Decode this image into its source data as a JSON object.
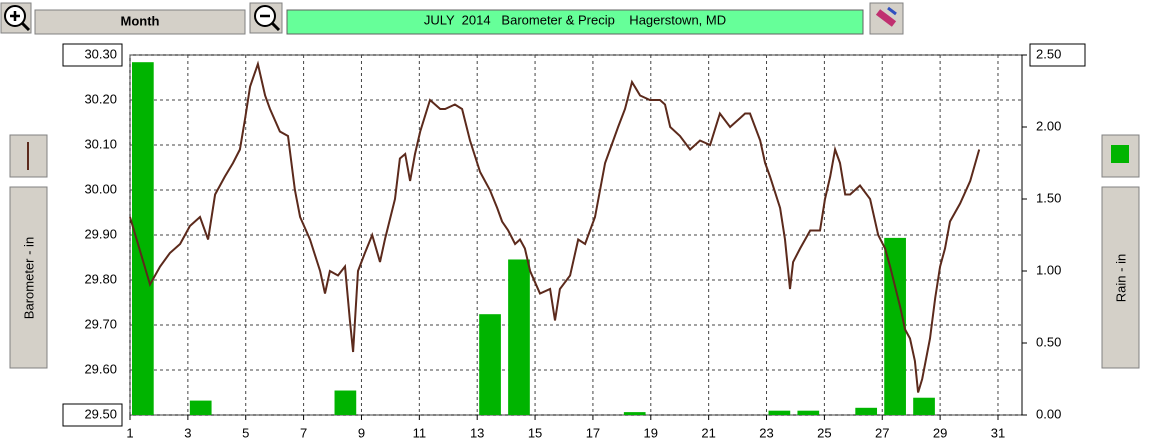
{
  "ui": {
    "period_button": "Month"
  },
  "chart_data": {
    "type": "combo",
    "title": "JULY  2014   Barometer & Precip    Hagerstown, MD",
    "y_label": "Barometer - in",
    "y2_label": "Rain - in",
    "xlim": [
      1,
      31.83
    ],
    "xticks": [
      1,
      3,
      5,
      7,
      9,
      11,
      13,
      15,
      17,
      19,
      21,
      23,
      25,
      27,
      29,
      31
    ],
    "ylim": [
      29.5,
      30.3
    ],
    "yticks": [
      {
        "value": 29.5,
        "label": "29.50"
      },
      {
        "value": 29.6,
        "label": "29.60"
      },
      {
        "value": 29.7,
        "label": "29.70"
      },
      {
        "value": 29.8,
        "label": "29.80"
      },
      {
        "value": 29.9,
        "label": "29.90"
      },
      {
        "value": 30.0,
        "label": "30.00"
      },
      {
        "value": 30.1,
        "label": "30.10"
      },
      {
        "value": 30.2,
        "label": "30.20"
      },
      {
        "value": 30.3,
        "label": "30.30"
      }
    ],
    "y2lim": [
      0,
      2.5
    ],
    "y2ticks": [
      {
        "value": 0,
        "label": "0.00"
      },
      {
        "value": 0.5,
        "label": "0.50"
      },
      {
        "value": 1.0,
        "label": "1.00"
      },
      {
        "value": 1.5,
        "label": "1.50"
      },
      {
        "value": 2.0,
        "label": "2.00"
      },
      {
        "value": 2.5,
        "label": "2.50"
      }
    ],
    "grid": true,
    "series": [
      {
        "type": "line",
        "color": "#5c2a1c",
        "x": [
          1.0,
          1.69,
          2.04,
          2.38,
          2.73,
          3.07,
          3.42,
          3.7,
          3.94,
          4.28,
          4.56,
          4.8,
          4.98,
          5.15,
          5.42,
          5.67,
          5.84,
          6.18,
          6.46,
          6.7,
          6.88,
          7.22,
          7.57,
          7.74,
          7.91,
          8.19,
          8.43,
          8.6,
          8.71,
          8.88,
          9.12,
          9.37,
          9.64,
          9.81,
          10.16,
          10.33,
          10.51,
          10.68,
          10.85,
          11.03,
          11.37,
          11.72,
          11.89,
          12.23,
          12.48,
          12.75,
          13.1,
          13.44,
          13.69,
          13.86,
          14.07,
          14.31,
          14.48,
          14.65,
          14.83,
          15.17,
          15.52,
          15.69,
          15.86,
          16.21,
          16.49,
          16.73,
          17.07,
          17.42,
          17.59,
          17.87,
          18.11,
          18.35,
          18.63,
          18.97,
          19.32,
          19.49,
          19.67,
          20.01,
          20.36,
          20.7,
          21.05,
          21.39,
          21.74,
          22.09,
          22.26,
          22.43,
          22.78,
          22.95,
          23.12,
          23.47,
          23.64,
          23.81,
          23.92,
          24.16,
          24.51,
          24.85,
          25.02,
          25.2,
          25.37,
          25.54,
          25.72,
          25.89,
          26.23,
          26.58,
          26.86,
          27.1,
          27.27,
          27.62,
          27.79,
          27.96,
          28.13,
          28.24,
          28.38,
          28.65,
          28.83,
          29.0,
          29.17,
          29.34,
          29.69,
          30.04,
          30.35
        ],
        "values": [
          29.94,
          29.79,
          29.83,
          29.86,
          29.88,
          29.92,
          29.94,
          29.89,
          29.99,
          30.03,
          30.06,
          30.09,
          30.16,
          30.23,
          30.28,
          30.21,
          30.18,
          30.13,
          30.12,
          30.0,
          29.94,
          29.89,
          29.82,
          29.77,
          29.82,
          29.81,
          29.83,
          29.71,
          29.64,
          29.82,
          29.86,
          29.9,
          29.84,
          29.89,
          29.98,
          30.07,
          30.08,
          30.02,
          30.08,
          30.13,
          30.2,
          30.18,
          30.18,
          30.19,
          30.18,
          30.11,
          30.04,
          30.0,
          29.96,
          29.93,
          29.91,
          29.88,
          29.89,
          29.87,
          29.82,
          29.77,
          29.78,
          29.71,
          29.78,
          29.81,
          29.89,
          29.88,
          29.94,
          30.06,
          30.09,
          30.14,
          30.18,
          30.24,
          30.21,
          30.2,
          30.2,
          30.19,
          30.14,
          30.12,
          30.09,
          30.11,
          30.1,
          30.17,
          30.14,
          30.16,
          30.17,
          30.17,
          30.11,
          30.06,
          30.03,
          29.96,
          29.89,
          29.78,
          29.84,
          29.87,
          29.91,
          29.91,
          29.98,
          30.03,
          30.09,
          30.06,
          29.99,
          29.99,
          30.01,
          29.98,
          29.9,
          29.87,
          29.83,
          29.74,
          29.69,
          29.67,
          29.62,
          29.55,
          29.58,
          29.67,
          29.76,
          29.83,
          29.87,
          29.93,
          29.97,
          30.02,
          30.09
        ]
      },
      {
        "type": "bar",
        "axis": "y2",
        "color": "#00b400",
        "x": [
          1,
          2,
          3,
          4,
          5,
          6,
          7,
          8,
          9,
          10,
          11,
          12,
          13,
          14,
          15,
          16,
          17,
          18,
          19,
          20,
          21,
          22,
          23,
          24,
          25,
          26,
          27,
          28,
          29,
          30,
          31
        ],
        "values": [
          2.45,
          0,
          0.1,
          0,
          0,
          0,
          0,
          0.17,
          0,
          0,
          0,
          0,
          0.7,
          1.08,
          0,
          0,
          0,
          0.02,
          0,
          0,
          0,
          0,
          0.03,
          0.03,
          0,
          0.05,
          1.23,
          0.12,
          0,
          0,
          0
        ]
      }
    ]
  }
}
